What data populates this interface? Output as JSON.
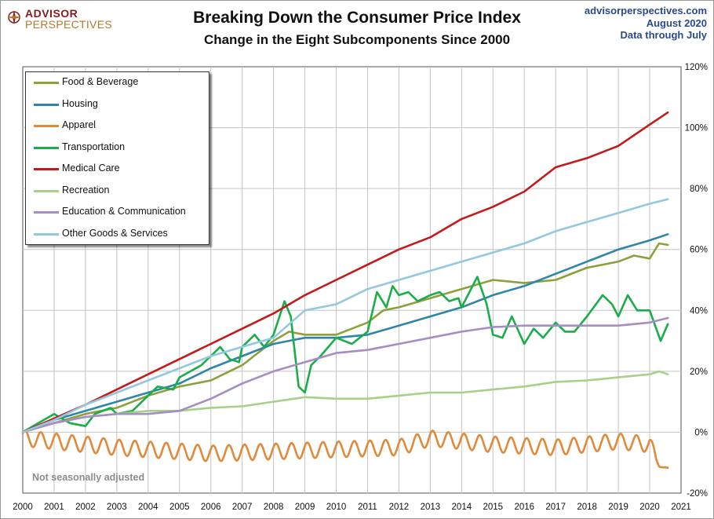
{
  "header": {
    "logo_top": "ADVISOR",
    "logo_bottom": "PERSPECTIVES",
    "source_site": "advisorperspectives.com",
    "source_date": "August  2020",
    "source_note": "Data through July"
  },
  "note": "Not seasonally adjusted",
  "chart_data": {
    "type": "line",
    "title": "Breaking Down the Consumer Price Index",
    "subtitle": "Change in the Eight Subcomponents  Since 2000",
    "xlabel": "",
    "ylabel": "",
    "x_ticks": [
      "2000",
      "2001",
      "2002",
      "2003",
      "2004",
      "2005",
      "2006",
      "2007",
      "2008",
      "2009",
      "2010",
      "2011",
      "2012",
      "2013",
      "2014",
      "2015",
      "2016",
      "2017",
      "2018",
      "2019",
      "2020",
      "2021"
    ],
    "y_ticks": [
      "-20%",
      "0%",
      "20%",
      "40%",
      "60%",
      "80%",
      "100%",
      "120%"
    ],
    "xlim": [
      2000,
      2021
    ],
    "ylim": [
      -20,
      120
    ],
    "y_unit": "%",
    "grid": true,
    "y_axis_side": "right",
    "legend_position": "top-left",
    "series": [
      {
        "name": "Food & Beverage",
        "color": "#8ea03c",
        "x": [
          2000,
          2001,
          2002,
          2003,
          2004,
          2005,
          2006,
          2007,
          2008,
          2008.5,
          2009,
          2010,
          2011,
          2011.5,
          2012,
          2013,
          2014,
          2015,
          2016,
          2017,
          2018,
          2019,
          2019.5,
          2020,
          2020.3,
          2020.58
        ],
        "y": [
          0,
          3,
          6,
          8,
          12,
          15,
          17,
          22,
          30,
          33,
          32,
          32,
          36,
          40,
          41,
          44,
          47,
          50,
          49,
          50,
          54,
          56,
          58,
          57,
          62,
          61.5
        ]
      },
      {
        "name": "Housing",
        "color": "#2e86a8",
        "x": [
          2000,
          2001,
          2002,
          2003,
          2004,
          2005,
          2006,
          2007,
          2008,
          2009,
          2010,
          2011,
          2012,
          2013,
          2014,
          2015,
          2016,
          2017,
          2018,
          2019,
          2020,
          2020.58
        ],
        "y": [
          0,
          4,
          7,
          10,
          13,
          16,
          21,
          25,
          29,
          31,
          31,
          32,
          35,
          38,
          41,
          45,
          48,
          52,
          56,
          60,
          63,
          65
        ]
      },
      {
        "name": "Apparel",
        "color": "#e08a3c",
        "x": [
          2000,
          2003,
          2006,
          2009,
          2012,
          2013,
          2015,
          2017,
          2019,
          2020,
          2020.3,
          2020.58
        ],
        "y": [
          -2,
          -5,
          -7,
          -6,
          -5,
          -2,
          -4,
          -5,
          -3,
          -4,
          -11,
          -12
        ]
      },
      {
        "name": "Transportation",
        "color": "#1aae48",
        "x": [
          2000,
          2000.5,
          2001,
          2001.5,
          2002,
          2002.3,
          2002.8,
          2003,
          2003.5,
          2004,
          2004.3,
          2004.8,
          2005,
          2005.7,
          2006,
          2006.3,
          2006.6,
          2006.9,
          2007,
          2007.4,
          2007.7,
          2008,
          2008.35,
          2008.55,
          2008.8,
          2009,
          2009.2,
          2009.5,
          2010,
          2010.5,
          2011,
          2011.3,
          2011.6,
          2011.8,
          2012,
          2012.3,
          2012.6,
          2013,
          2013.3,
          2013.6,
          2013.9,
          2014,
          2014.5,
          2014.8,
          2015,
          2015.3,
          2015.6,
          2016,
          2016.3,
          2016.6,
          2017,
          2017.3,
          2017.6,
          2018,
          2018.5,
          2018.8,
          2019,
          2019.3,
          2019.6,
          2020,
          2020.35,
          2020.58
        ],
        "y": [
          0,
          3,
          6,
          3,
          2,
          6,
          8,
          6,
          7,
          12,
          15,
          14,
          18,
          22,
          25,
          28,
          24,
          23,
          28,
          32,
          28,
          32,
          43,
          38,
          15,
          13,
          22,
          25,
          31,
          29,
          33,
          46,
          41,
          48,
          45,
          46,
          43,
          45,
          46,
          43,
          44,
          41,
          51,
          42,
          32,
          31,
          38,
          29,
          34,
          31,
          36,
          33,
          33,
          38,
          45,
          42,
          38,
          45,
          40,
          40,
          30,
          35.5
        ]
      },
      {
        "name": "Medical Care",
        "color": "#c41a1a",
        "x": [
          2000,
          2001,
          2002,
          2003,
          2004,
          2005,
          2006,
          2007,
          2008,
          2009,
          2010,
          2011,
          2012,
          2013,
          2014,
          2015,
          2016,
          2017,
          2018,
          2019,
          2020,
          2020.58
        ],
        "y": [
          0,
          4.5,
          9,
          14,
          19,
          24,
          29,
          34,
          39,
          45,
          50,
          55,
          60,
          64,
          70,
          74,
          79,
          87,
          90,
          94,
          101,
          105
        ]
      },
      {
        "name": "Recreation",
        "color": "#a8d08a",
        "x": [
          2000,
          2001,
          2002,
          2003,
          2004,
          2005,
          2006,
          2007,
          2008,
          2009,
          2010,
          2011,
          2012,
          2013,
          2014,
          2015,
          2016,
          2017,
          2018,
          2019,
          2020,
          2020.3,
          2020.58
        ],
        "y": [
          0,
          3,
          5,
          6,
          7,
          7,
          8,
          8.5,
          10,
          11.5,
          11,
          11,
          12,
          13,
          13,
          14,
          15,
          16.5,
          17,
          18,
          19,
          20,
          19
        ]
      },
      {
        "name": "Education & Communication",
        "color": "#a68dc4",
        "x": [
          2000,
          2001,
          2002,
          2003,
          2004,
          2005,
          2006,
          2007,
          2008,
          2009,
          2010,
          2011,
          2012,
          2013,
          2014,
          2015,
          2016,
          2017,
          2018,
          2019,
          2020,
          2020.58
        ],
        "y": [
          0,
          3,
          5,
          6,
          6,
          7,
          11,
          16,
          20,
          23,
          26,
          27,
          29,
          31,
          33,
          34.5,
          35,
          35,
          35,
          35,
          36,
          37.5
        ]
      },
      {
        "name": "Other Goods & Services",
        "color": "#94c8df",
        "x": [
          2000,
          2001,
          2002,
          2003,
          2004,
          2005,
          2006,
          2007,
          2008,
          2009,
          2010,
          2011,
          2012,
          2013,
          2014,
          2015,
          2016,
          2017,
          2018,
          2019,
          2020,
          2020.58
        ],
        "y": [
          0,
          4,
          9,
          13,
          17,
          21,
          25,
          28,
          31,
          40,
          42,
          47,
          50,
          53,
          56,
          59,
          62,
          66,
          69,
          72,
          75,
          76.5
        ]
      }
    ]
  }
}
